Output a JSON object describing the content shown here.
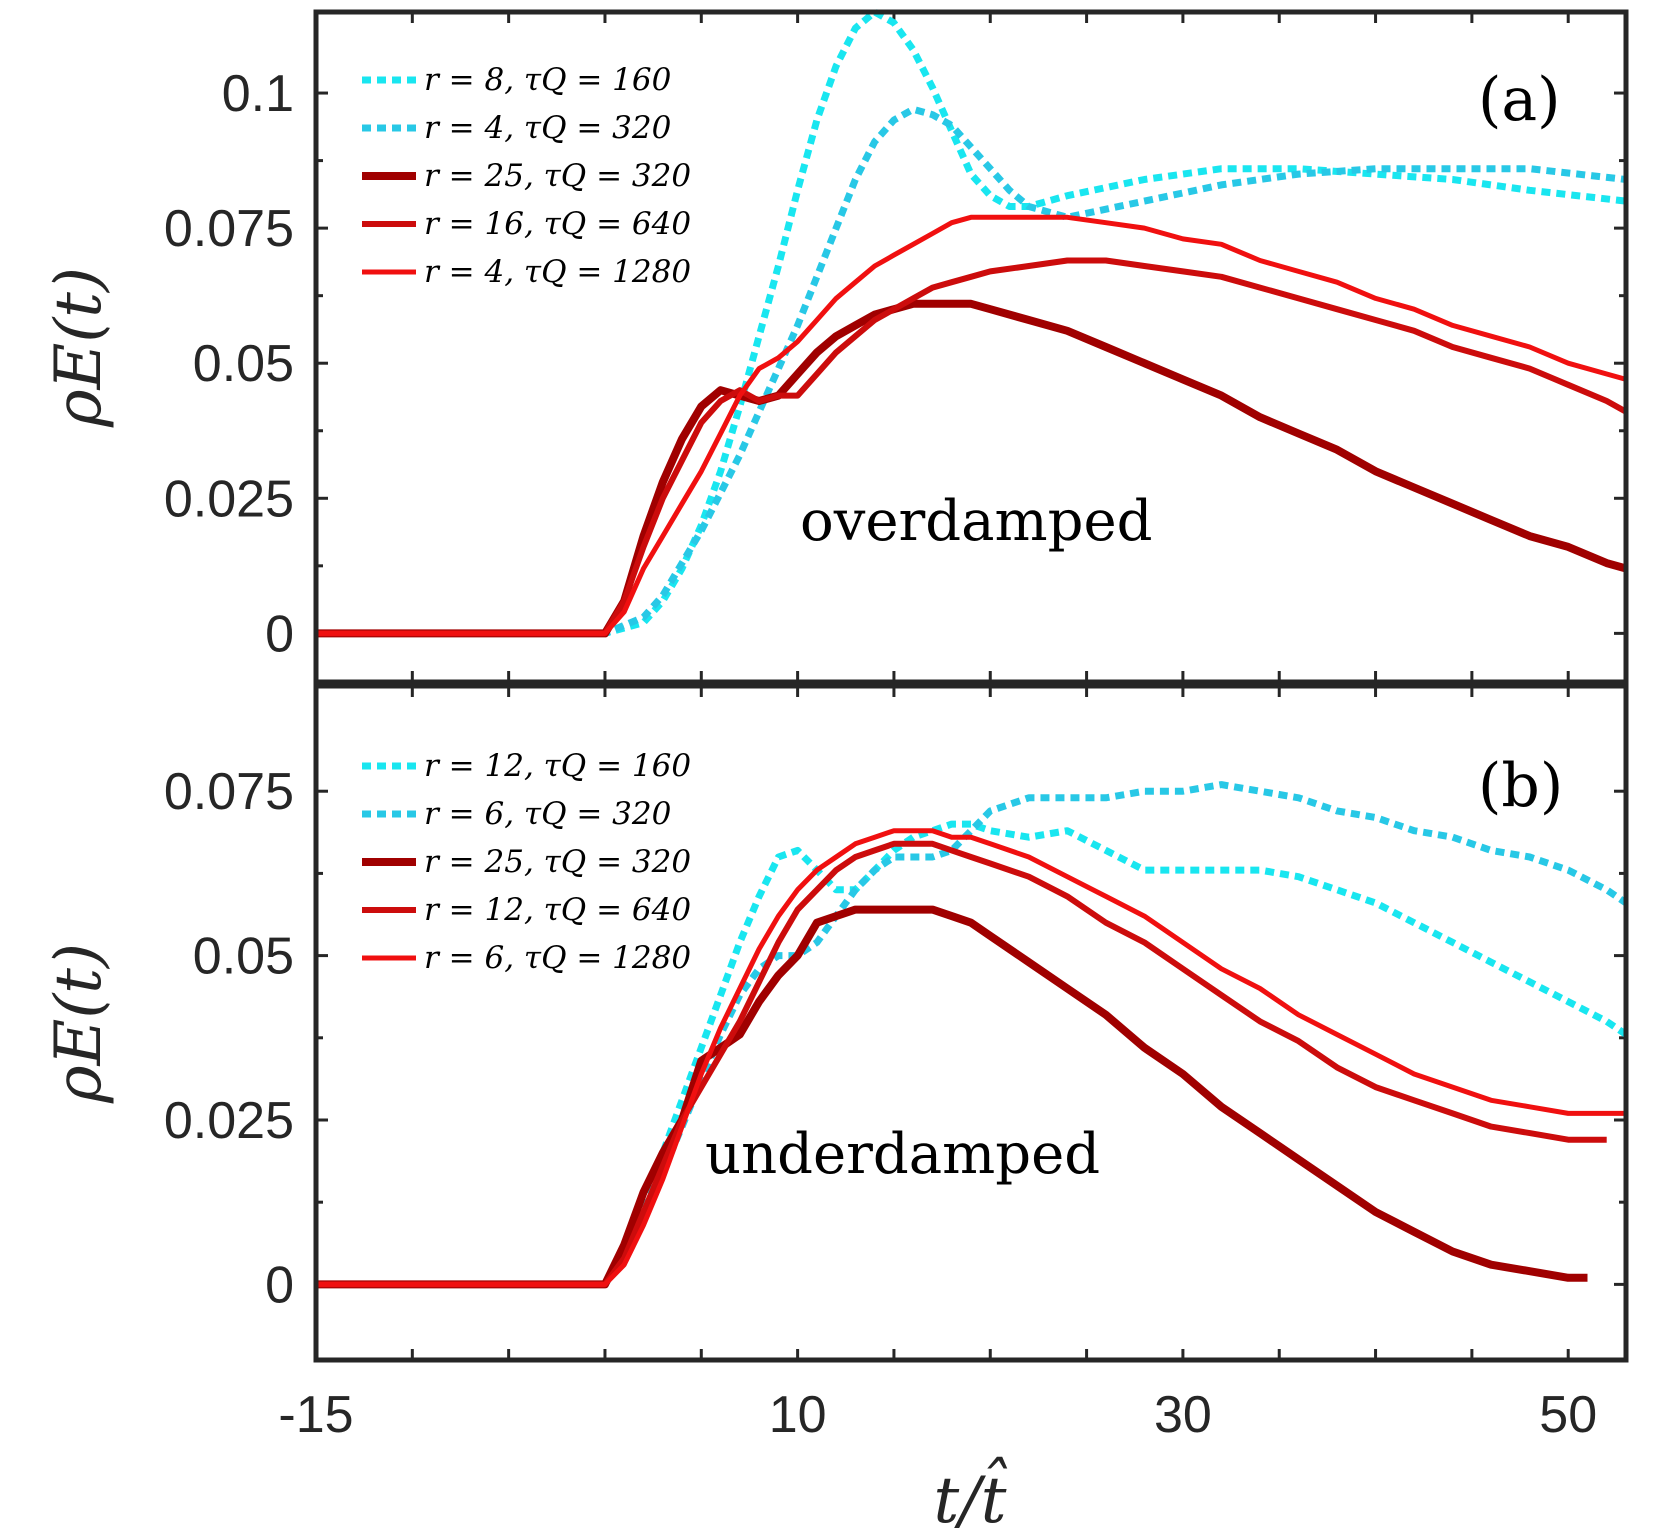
{
  "figure": {
    "xlabel": "t/t̂",
    "x_ticks": [
      "-15",
      "10",
      "30",
      "50"
    ]
  },
  "chart_data": [
    {
      "type": "line",
      "panel_label": "(a)",
      "annotation": "overdamped",
      "ylabel": "ρE(t)",
      "xlim": [
        -15,
        53
      ],
      "ylim": [
        -0.009,
        0.115
      ],
      "x_tick_values": [
        -15,
        10,
        30,
        50
      ],
      "y_tick_values": [
        0,
        0.025,
        0.05,
        0.075,
        0.1
      ],
      "y_tick_labels": [
        "0",
        "0.025",
        "0.05",
        "0.075",
        "0.1"
      ],
      "legend_position": "top-left",
      "series": [
        {
          "name": "r = 8, τQ = 160",
          "color": "#19e6f0",
          "style": "dotted",
          "width": 7,
          "x": [
            -15,
            -2,
            0,
            2,
            3,
            4,
            5,
            6,
            7,
            8,
            9,
            10,
            11,
            12,
            13,
            14,
            15,
            16,
            17,
            18,
            19,
            20,
            21,
            22,
            24,
            28,
            32,
            36,
            40,
            44,
            48,
            53
          ],
          "y": [
            0,
            0,
            0,
            0.002,
            0.006,
            0.012,
            0.02,
            0.03,
            0.042,
            0.055,
            0.068,
            0.082,
            0.095,
            0.105,
            0.112,
            0.115,
            0.113,
            0.108,
            0.101,
            0.093,
            0.085,
            0.081,
            0.079,
            0.079,
            0.081,
            0.084,
            0.086,
            0.086,
            0.085,
            0.084,
            0.082,
            0.08
          ]
        },
        {
          "name": "r = 4, τQ = 320",
          "color": "#28c8e6",
          "style": "dotted",
          "width": 7,
          "x": [
            -15,
            -2,
            0,
            2,
            3,
            4,
            5,
            6,
            7,
            8,
            9,
            10,
            11,
            12,
            13,
            14,
            15,
            16,
            17,
            18,
            19,
            20,
            21,
            22,
            24,
            28,
            32,
            36,
            40,
            44,
            48,
            53
          ],
          "y": [
            0,
            0,
            0,
            0.003,
            0.007,
            0.013,
            0.019,
            0.026,
            0.033,
            0.041,
            0.049,
            0.057,
            0.066,
            0.075,
            0.084,
            0.091,
            0.095,
            0.097,
            0.096,
            0.094,
            0.09,
            0.086,
            0.082,
            0.079,
            0.077,
            0.08,
            0.083,
            0.085,
            0.086,
            0.086,
            0.086,
            0.084
          ]
        },
        {
          "name": "r = 25, τQ = 320",
          "color": "#a00000",
          "style": "solid",
          "width": 8,
          "x": [
            -15,
            -2,
            0,
            1,
            2,
            3,
            4,
            5,
            6,
            7,
            8,
            9,
            10,
            11,
            12,
            13,
            14,
            15,
            16,
            17,
            18,
            19,
            20,
            22,
            24,
            26,
            28,
            30,
            32,
            34,
            36,
            38,
            40,
            42,
            44,
            46,
            48,
            50,
            52,
            53
          ],
          "y": [
            0,
            0,
            0,
            0.006,
            0.018,
            0.028,
            0.036,
            0.042,
            0.045,
            0.044,
            0.043,
            0.044,
            0.048,
            0.052,
            0.055,
            0.057,
            0.059,
            0.06,
            0.061,
            0.061,
            0.061,
            0.061,
            0.06,
            0.058,
            0.056,
            0.053,
            0.05,
            0.047,
            0.044,
            0.04,
            0.037,
            0.034,
            0.03,
            0.027,
            0.024,
            0.021,
            0.018,
            0.016,
            0.013,
            0.012
          ]
        },
        {
          "name": "r = 16, τQ = 640",
          "color": "#cc0c0c",
          "style": "solid",
          "width": 6,
          "x": [
            -15,
            -2,
            0,
            1,
            2,
            3,
            4,
            5,
            6,
            7,
            8,
            9,
            10,
            11,
            12,
            13,
            14,
            15,
            16,
            17,
            18,
            19,
            20,
            22,
            24,
            26,
            28,
            30,
            32,
            34,
            36,
            38,
            40,
            42,
            44,
            46,
            48,
            50,
            52,
            53
          ],
          "y": [
            0,
            0,
            0,
            0.006,
            0.016,
            0.025,
            0.032,
            0.039,
            0.043,
            0.045,
            0.043,
            0.044,
            0.044,
            0.048,
            0.052,
            0.055,
            0.058,
            0.06,
            0.062,
            0.064,
            0.065,
            0.066,
            0.067,
            0.068,
            0.069,
            0.069,
            0.068,
            0.067,
            0.066,
            0.064,
            0.062,
            0.06,
            0.058,
            0.056,
            0.053,
            0.051,
            0.049,
            0.046,
            0.043,
            0.041
          ]
        },
        {
          "name": "r = 4, τQ = 1280",
          "color": "#f01010",
          "style": "solid",
          "width": 5,
          "x": [
            -15,
            -2,
            0,
            1,
            2,
            3,
            4,
            5,
            6,
            7,
            8,
            9,
            10,
            11,
            12,
            13,
            14,
            15,
            16,
            17,
            18,
            19,
            20,
            22,
            24,
            26,
            28,
            30,
            32,
            34,
            36,
            38,
            40,
            42,
            44,
            46,
            48,
            50,
            52,
            53
          ],
          "y": [
            0,
            0,
            0,
            0.004,
            0.012,
            0.018,
            0.024,
            0.03,
            0.037,
            0.044,
            0.049,
            0.051,
            0.054,
            0.058,
            0.062,
            0.065,
            0.068,
            0.07,
            0.072,
            0.074,
            0.076,
            0.077,
            0.077,
            0.077,
            0.077,
            0.076,
            0.075,
            0.073,
            0.072,
            0.069,
            0.067,
            0.065,
            0.062,
            0.06,
            0.057,
            0.055,
            0.053,
            0.05,
            0.048,
            0.047
          ]
        }
      ]
    },
    {
      "type": "line",
      "panel_label": "(b)",
      "annotation": "underdamped",
      "ylabel": "ρE(t)",
      "xlim": [
        -15,
        53
      ],
      "ylim": [
        -0.0115,
        0.091
      ],
      "x_tick_values": [
        -15,
        10,
        30,
        50
      ],
      "y_tick_values": [
        0,
        0.025,
        0.05,
        0.075
      ],
      "y_tick_labels": [
        "0",
        "0.025",
        "0.05",
        "0.075"
      ],
      "legend_position": "top-left",
      "series": [
        {
          "name": "r = 12, τQ = 160",
          "color": "#19e6f0",
          "style": "dotted",
          "width": 7,
          "x": [
            -15,
            -2,
            0,
            1,
            2,
            3,
            4,
            5,
            6,
            7,
            8,
            9,
            10,
            11,
            12,
            13,
            14,
            15,
            16,
            17,
            18,
            19,
            20,
            22,
            24,
            26,
            28,
            30,
            32,
            34,
            36,
            38,
            40,
            42,
            44,
            46,
            48,
            50,
            52,
            53
          ],
          "y": [
            0,
            0,
            0,
            0.005,
            0.012,
            0.02,
            0.028,
            0.036,
            0.044,
            0.052,
            0.059,
            0.065,
            0.066,
            0.063,
            0.06,
            0.06,
            0.063,
            0.066,
            0.068,
            0.069,
            0.07,
            0.07,
            0.069,
            0.068,
            0.069,
            0.066,
            0.063,
            0.063,
            0.063,
            0.063,
            0.062,
            0.06,
            0.058,
            0.055,
            0.052,
            0.049,
            0.046,
            0.043,
            0.04,
            0.038
          ]
        },
        {
          "name": "r = 6, τQ = 320",
          "color": "#28c8e6",
          "style": "dotted",
          "width": 7,
          "x": [
            -15,
            -2,
            0,
            1,
            2,
            3,
            4,
            5,
            6,
            7,
            8,
            9,
            10,
            11,
            12,
            13,
            14,
            15,
            16,
            17,
            18,
            19,
            20,
            22,
            24,
            26,
            28,
            30,
            32,
            34,
            36,
            38,
            40,
            42,
            44,
            46,
            48,
            50,
            52,
            53
          ],
          "y": [
            0,
            0,
            0,
            0.004,
            0.01,
            0.017,
            0.024,
            0.031,
            0.038,
            0.044,
            0.048,
            0.05,
            0.05,
            0.052,
            0.056,
            0.06,
            0.063,
            0.065,
            0.065,
            0.065,
            0.066,
            0.069,
            0.072,
            0.074,
            0.074,
            0.074,
            0.075,
            0.075,
            0.076,
            0.075,
            0.074,
            0.072,
            0.071,
            0.069,
            0.068,
            0.066,
            0.065,
            0.063,
            0.06,
            0.058
          ]
        },
        {
          "name": "r = 25, τQ = 320",
          "color": "#a00000",
          "style": "solid",
          "width": 8,
          "x": [
            -15,
            -2,
            0,
            1,
            2,
            3,
            4,
            5,
            6,
            7,
            8,
            9,
            10,
            11,
            12,
            13,
            14,
            15,
            16,
            17,
            18,
            19,
            20,
            22,
            24,
            26,
            28,
            30,
            32,
            34,
            36,
            38,
            40,
            42,
            44,
            46,
            48,
            50,
            51
          ],
          "y": [
            0,
            0,
            0,
            0.006,
            0.014,
            0.02,
            0.025,
            0.034,
            0.036,
            0.038,
            0.043,
            0.047,
            0.05,
            0.055,
            0.056,
            0.057,
            0.057,
            0.057,
            0.057,
            0.057,
            0.056,
            0.055,
            0.053,
            0.049,
            0.045,
            0.041,
            0.036,
            0.032,
            0.027,
            0.023,
            0.019,
            0.015,
            0.011,
            0.008,
            0.005,
            0.003,
            0.002,
            0.001,
            0.001
          ]
        },
        {
          "name": "r = 12, τQ = 640",
          "color": "#cc0c0c",
          "style": "solid",
          "width": 6,
          "x": [
            -15,
            -2,
            0,
            1,
            2,
            3,
            4,
            5,
            6,
            7,
            8,
            9,
            10,
            11,
            12,
            13,
            14,
            15,
            16,
            17,
            18,
            19,
            20,
            22,
            24,
            26,
            28,
            30,
            32,
            34,
            36,
            38,
            40,
            42,
            44,
            46,
            48,
            50,
            52
          ],
          "y": [
            0,
            0,
            0,
            0.004,
            0.011,
            0.018,
            0.025,
            0.03,
            0.035,
            0.04,
            0.046,
            0.052,
            0.057,
            0.06,
            0.063,
            0.065,
            0.066,
            0.067,
            0.067,
            0.067,
            0.066,
            0.065,
            0.064,
            0.062,
            0.059,
            0.055,
            0.052,
            0.048,
            0.044,
            0.04,
            0.037,
            0.033,
            0.03,
            0.028,
            0.026,
            0.024,
            0.023,
            0.022,
            0.022
          ]
        },
        {
          "name": "r = 6, τQ = 1280",
          "color": "#f01010",
          "style": "solid",
          "width": 5,
          "x": [
            -15,
            -2,
            0,
            1,
            2,
            3,
            4,
            5,
            6,
            7,
            8,
            9,
            10,
            11,
            12,
            13,
            14,
            15,
            16,
            17,
            18,
            19,
            20,
            22,
            24,
            26,
            28,
            30,
            32,
            34,
            36,
            38,
            40,
            42,
            44,
            46,
            48,
            50,
            52,
            53
          ],
          "y": [
            0,
            0,
            0,
            0.003,
            0.009,
            0.016,
            0.024,
            0.032,
            0.039,
            0.045,
            0.051,
            0.056,
            0.06,
            0.063,
            0.065,
            0.067,
            0.068,
            0.069,
            0.069,
            0.069,
            0.068,
            0.068,
            0.067,
            0.065,
            0.062,
            0.059,
            0.056,
            0.052,
            0.048,
            0.045,
            0.041,
            0.038,
            0.035,
            0.032,
            0.03,
            0.028,
            0.027,
            0.026,
            0.026,
            0.026
          ]
        }
      ]
    }
  ]
}
